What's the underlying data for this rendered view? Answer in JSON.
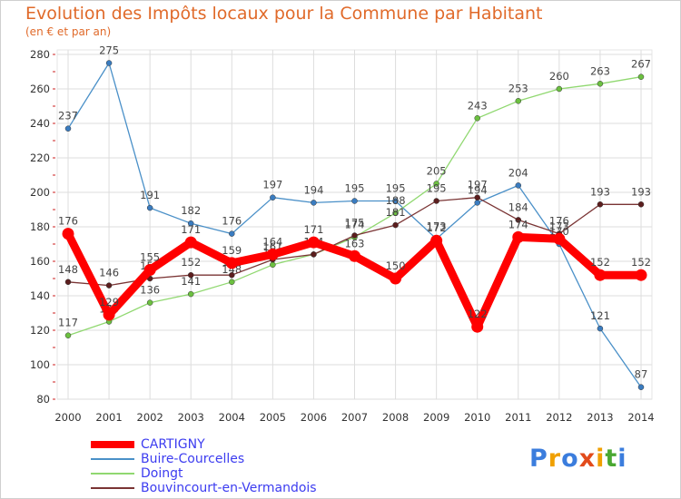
{
  "header": {
    "title": "Evolution des Impôts locaux pour la Commune par Habitant",
    "subtitle": "(en € et par an)"
  },
  "logo": {
    "chars": [
      "P",
      "r",
      "o",
      "x",
      "i",
      "t",
      "i"
    ],
    "colors": [
      "#3b7ddd",
      "#f0a000",
      "#3b7ddd",
      "#e24b1b",
      "#f0a000",
      "#4aa832",
      "#3b7ddd"
    ]
  },
  "chart_data": {
    "type": "line",
    "title": "Evolution des Impôts locaux pour la Commune par Habitant",
    "subtitle": "(en € et par an)",
    "xlabel": "",
    "ylabel": "",
    "x": [
      "2000",
      "2001",
      "2002",
      "2003",
      "2004",
      "2005",
      "2006",
      "2007",
      "2008",
      "2009",
      "2010",
      "2011",
      "2012",
      "2013",
      "2014"
    ],
    "ylim": [
      80,
      280
    ],
    "yticks": [
      80,
      100,
      120,
      140,
      160,
      180,
      200,
      220,
      240,
      260,
      280
    ],
    "grid": true,
    "series": [
      {
        "name": "Buire-Courcelles",
        "color": "#4a90c8",
        "marker": "#3a7cc0",
        "weight": "thin",
        "values": [
          237,
          275,
          191,
          182,
          176,
          197,
          194,
          195,
          195,
          173,
          194,
          204,
          170,
          121,
          87
        ],
        "labels": [
          "237",
          "275",
          "191",
          "182",
          "176",
          "197",
          "194",
          "195",
          "195",
          "173",
          "194",
          "204",
          "170",
          "121",
          "87"
        ]
      },
      {
        "name": "Doingt",
        "color": "#90d870",
        "marker": "#6cc040",
        "weight": "thin",
        "values": [
          117,
          125,
          136,
          141,
          148,
          158,
          164,
          174,
          188,
          205,
          243,
          253,
          260,
          263,
          267
        ],
        "labels": [
          "117",
          "125",
          "136",
          "141",
          "148",
          "158",
          "164",
          "174",
          "188",
          "205",
          "243",
          "253",
          "260",
          "263",
          "267"
        ]
      },
      {
        "name": "Bouvincourt-en-Vermandois",
        "color": "#7a3434",
        "marker": "#5c1e1e",
        "weight": "thin",
        "values": [
          148,
          146,
          150,
          152,
          152,
          161,
          164,
          175,
          181,
          195,
          197,
          184,
          176,
          193,
          193
        ],
        "labels": [
          "148",
          "146",
          "150",
          "152",
          "152",
          "161",
          "164",
          "175",
          "181",
          "195",
          "197",
          "184",
          "176",
          "193",
          "193"
        ]
      },
      {
        "name": "CARTIGNY",
        "color": "#ff0000",
        "marker": "#ff0000",
        "weight": "thick",
        "values": [
          176,
          129,
          155,
          171,
          159,
          164,
          171,
          163,
          150,
          172,
          122,
          174,
          173,
          152,
          152
        ],
        "labels": [
          "176",
          "129",
          "155",
          "171",
          "159",
          "164",
          "171",
          "163",
          "150",
          "172",
          "122",
          "174",
          "173",
          "152",
          "152"
        ]
      }
    ],
    "legend": [
      "CARTIGNY",
      "Buire-Courcelles",
      "Doingt",
      "Bouvincourt-en-Vermandois"
    ]
  }
}
